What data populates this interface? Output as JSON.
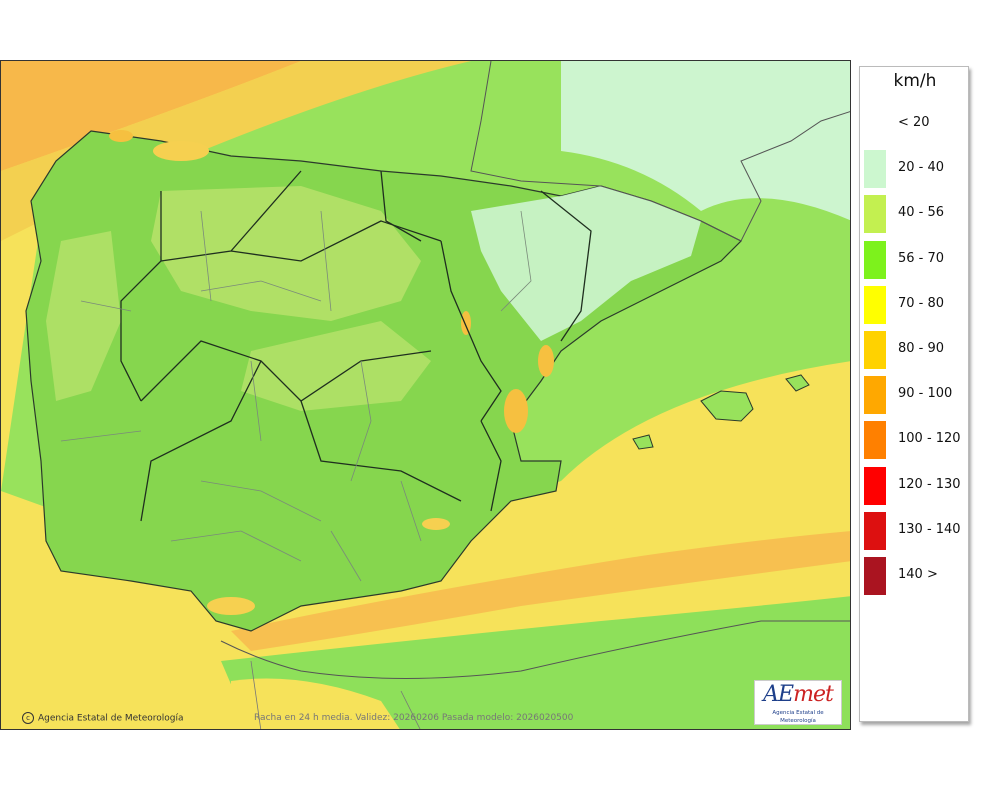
{
  "map": {
    "credit_text": "Agencia Estatal de Meteorología",
    "caption_text": "Racha en 24 h media. Validez: 20260206 Pasada modelo: 2026020500",
    "logo": {
      "wordmark_main": "AE",
      "wordmark_accent": "met",
      "subtitle": "Agencia Estatal de Meteorología"
    },
    "colors": {
      "sea_yellow": "#f6e25a",
      "land_green": "#7fd04a",
      "light_green": "#b7e26b",
      "pale": "#cdf5cf",
      "orange": "#f7b84a"
    }
  },
  "legend": {
    "unit": "km/h",
    "entries": [
      {
        "label": "< 20",
        "color": ""
      },
      {
        "label": "20 - 40",
        "color": "#ccf7cf"
      },
      {
        "label": "40 - 56",
        "color": "#c3f050"
      },
      {
        "label": "56 - 70",
        "color": "#7df21c"
      },
      {
        "label": "70 - 80",
        "color": "#ffff00"
      },
      {
        "label": "80 - 90",
        "color": "#ffd200"
      },
      {
        "label": "90 - 100",
        "color": "#ffa800"
      },
      {
        "label": "100 - 120",
        "color": "#ff8000"
      },
      {
        "label": "120 - 130",
        "color": "#ff0000"
      },
      {
        "label": "130 - 140",
        "color": "#dd1010"
      },
      {
        "label": "140 >",
        "color": "#aa1420"
      }
    ]
  }
}
